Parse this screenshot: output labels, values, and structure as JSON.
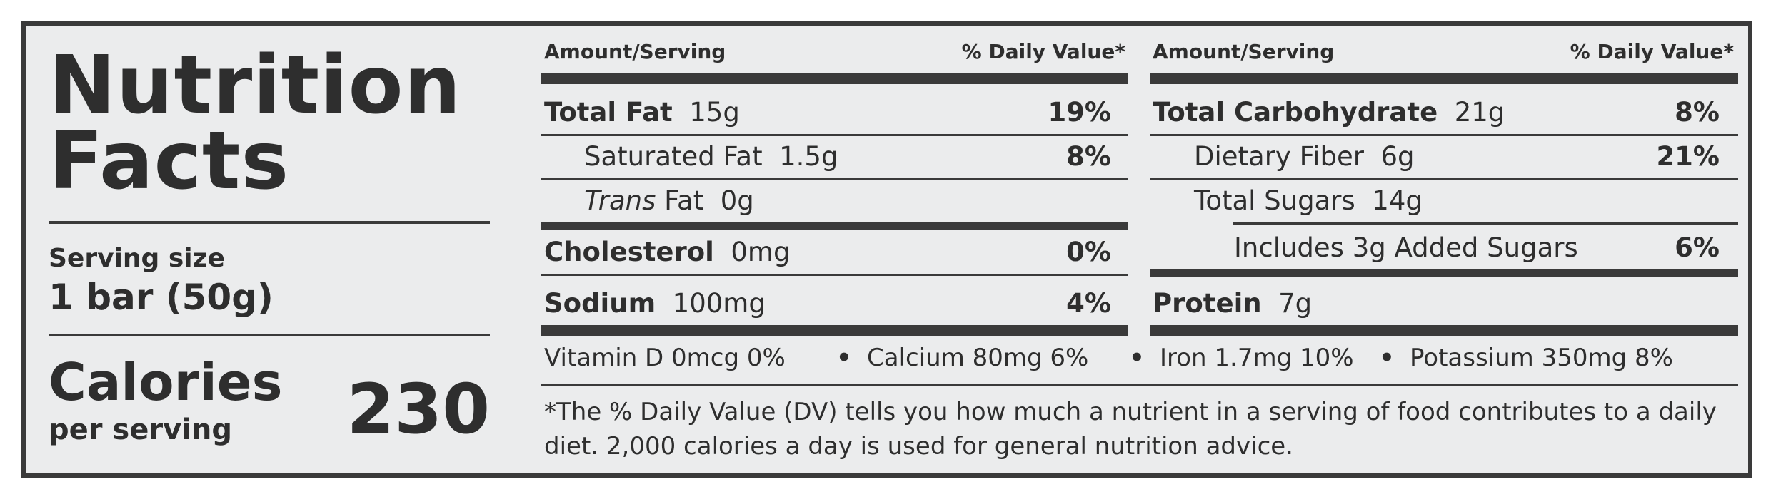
{
  "title": {
    "line1": "Nutrition",
    "line2": "Facts"
  },
  "serving": {
    "label": "Serving size",
    "value": "1 bar (50g)"
  },
  "calories": {
    "label": "Calories",
    "sublabel": "per serving",
    "value": "230"
  },
  "columns": {
    "amount_header": "Amount/Serving",
    "dv_header": "% Daily Value*"
  },
  "left_rows": {
    "total_fat": {
      "name": "Total Fat",
      "amount": "15g",
      "dv": "19%"
    },
    "saturated_fat": {
      "name": "Saturated Fat",
      "amount": "1.5g",
      "dv": "8%"
    },
    "trans_fat": {
      "name_italic": "Trans",
      "name_rest": "Fat",
      "amount": "0g"
    },
    "cholesterol": {
      "name": "Cholesterol",
      "amount": "0mg",
      "dv": "0%"
    },
    "sodium": {
      "name": "Sodium",
      "amount": "100mg",
      "dv": "4%"
    }
  },
  "right_rows": {
    "total_carb": {
      "name": "Total Carbohydrate",
      "amount": "21g",
      "dv": "8%"
    },
    "fiber": {
      "name": "Dietary Fiber",
      "amount": "6g",
      "dv": "21%"
    },
    "sugars": {
      "name": "Total Sugars",
      "amount": "14g"
    },
    "added_sugars": {
      "name": "Includes 3g Added Sugars",
      "dv": "6%"
    },
    "protein": {
      "name": "Protein",
      "amount": "7g"
    }
  },
  "vitamins": {
    "vitamin_d": "Vitamin D 0mcg  0%",
    "calcium": "Calcium 80mg  6%",
    "iron": "Iron 1.7mg  10%",
    "potassium": "Potassium 350mg  8%",
    "separator": "•"
  },
  "footnote": {
    "line1": "*The % Daily Value (DV) tells you how much a nutrient in a serving of food contributes to a daily",
    "line2": "diet. 2,000 calories a day is used for general nutrition advice."
  }
}
